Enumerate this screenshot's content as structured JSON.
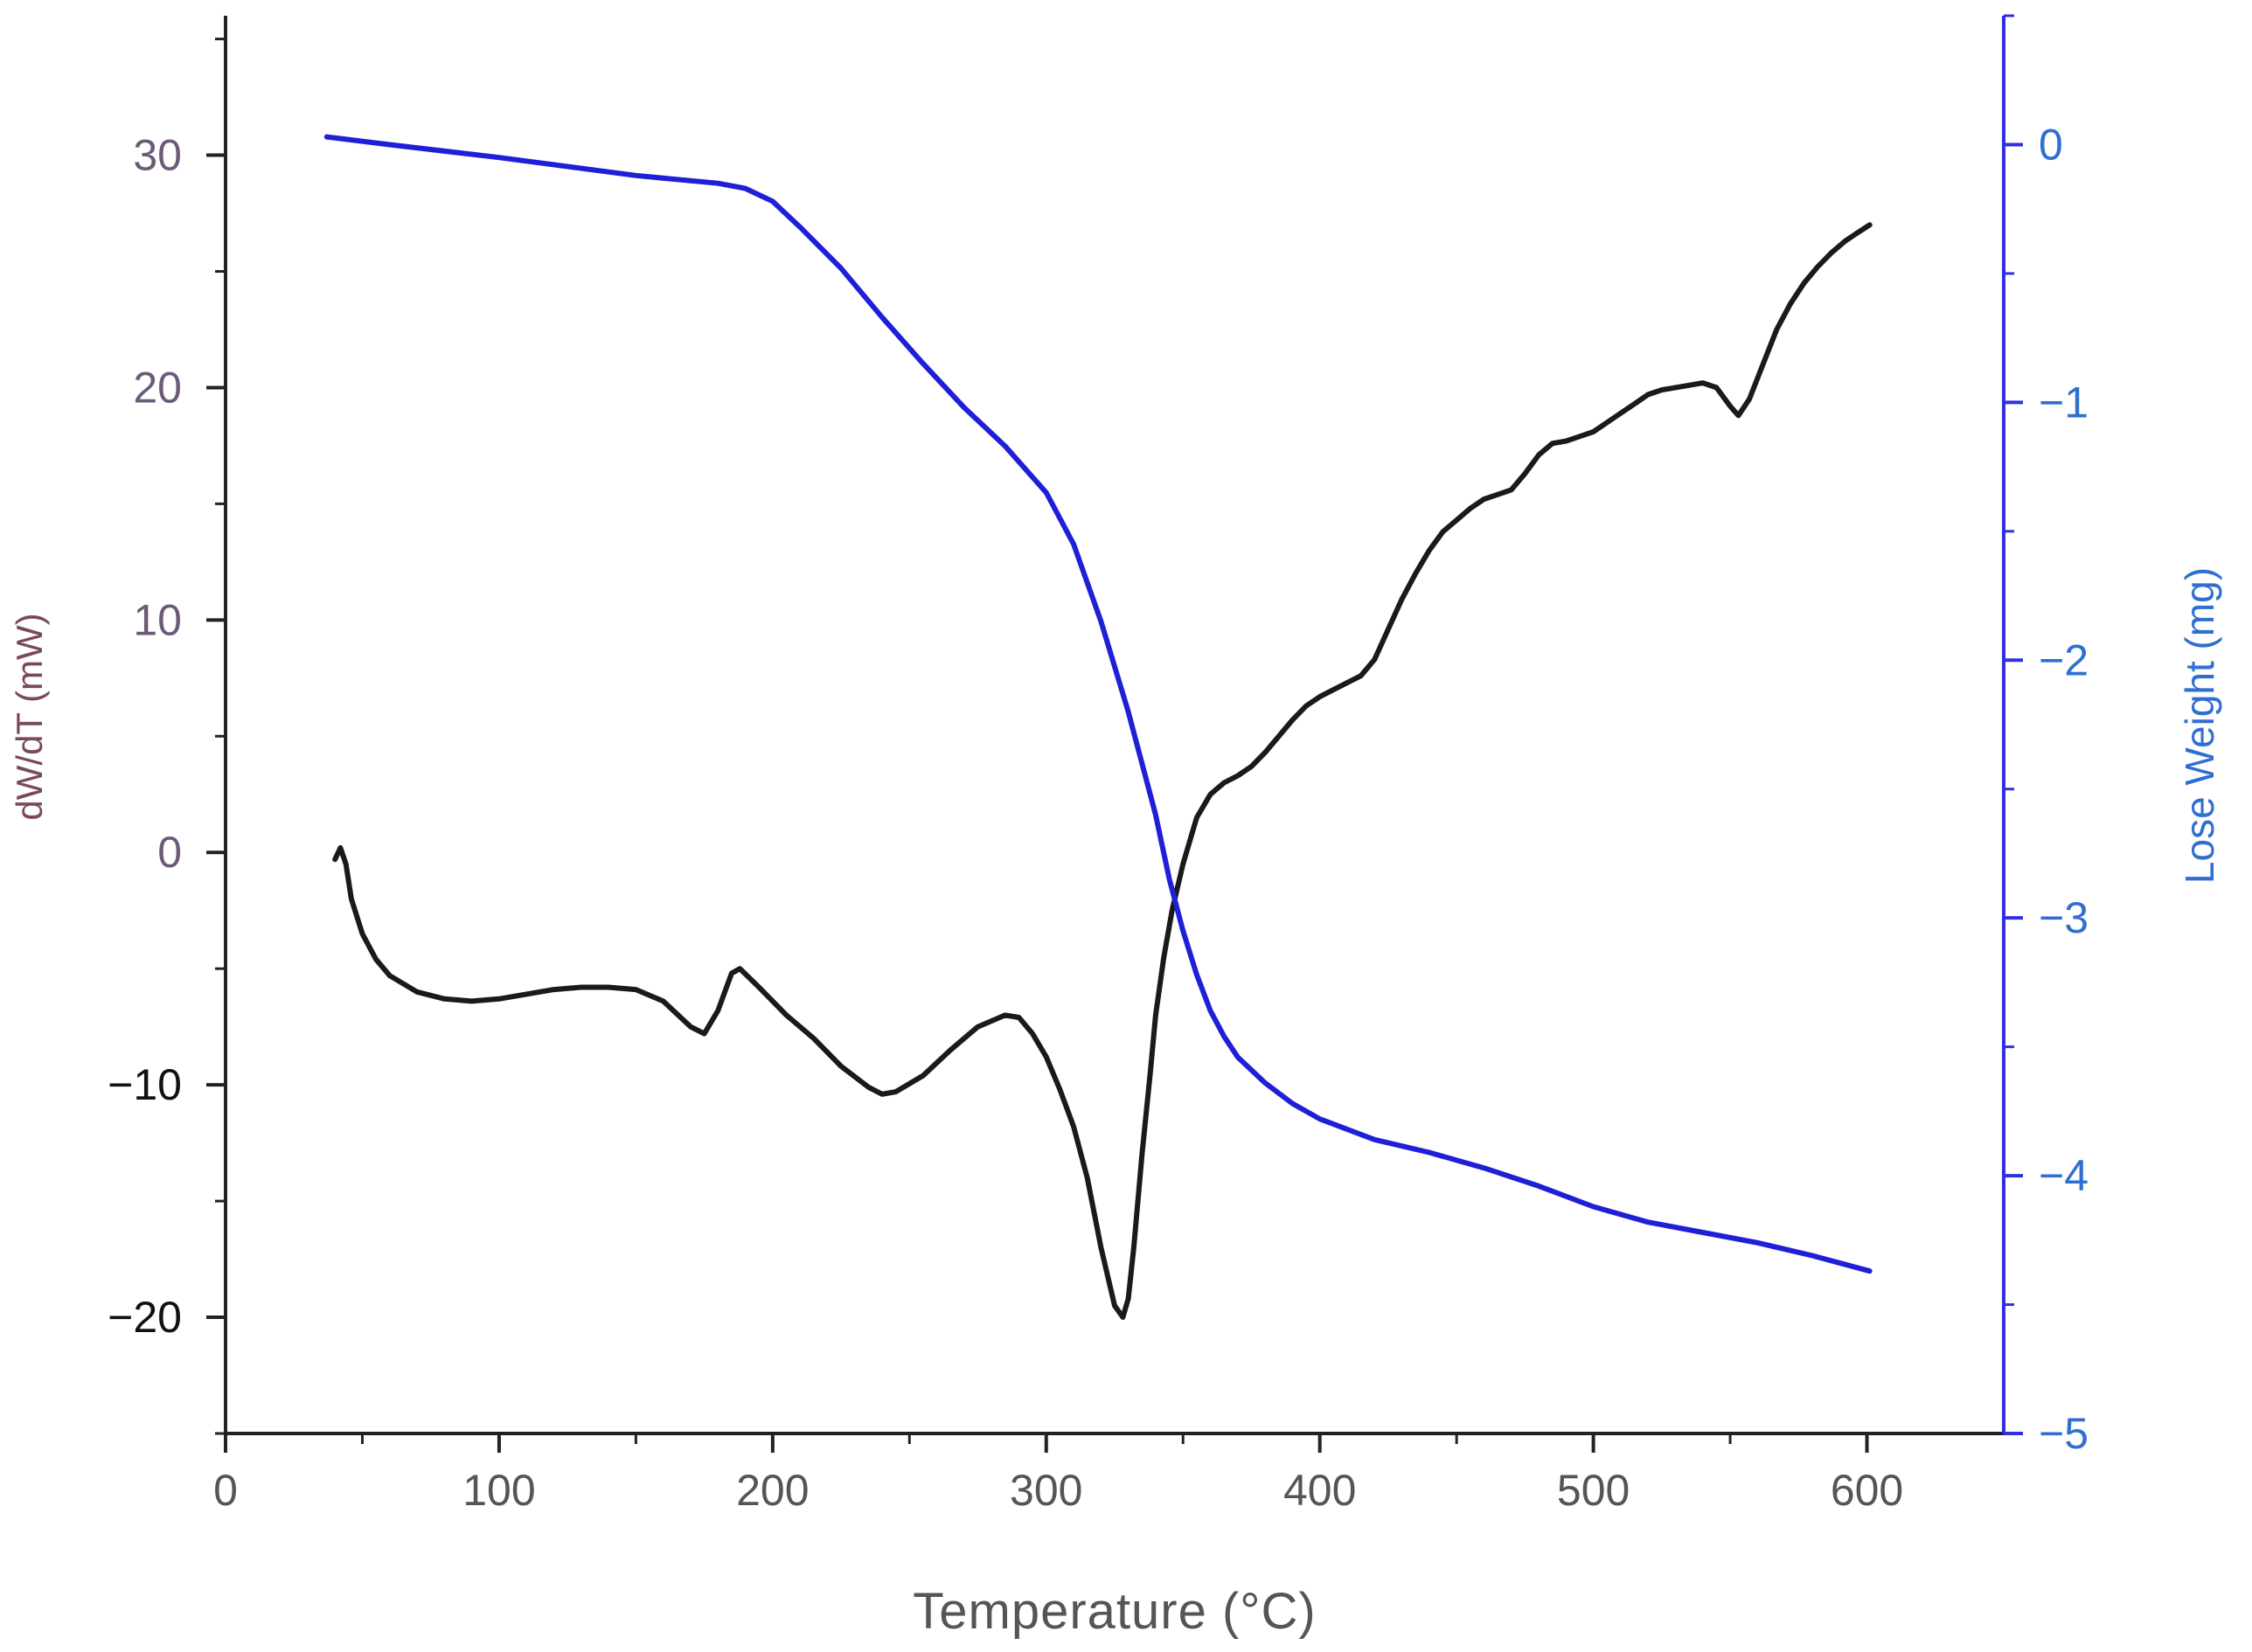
{
  "chart_data": {
    "type": "line",
    "title": "",
    "xlabel": "Temperature (°C)",
    "ylabel_left": "dW/dT (mW)",
    "ylabel_right": "Lose Weight (mg)",
    "xlim": [
      0,
      650
    ],
    "ylim_left": [
      -25,
      36
    ],
    "ylim_right": [
      -5,
      0.5
    ],
    "x_ticks": [
      {
        "value": 0,
        "label": "0"
      },
      {
        "value": 100,
        "label": "100"
      },
      {
        "value": 200,
        "label": "200"
      },
      {
        "value": 300,
        "label": "300"
      },
      {
        "value": 400,
        "label": "400"
      },
      {
        "value": 500,
        "label": "500"
      },
      {
        "value": 600,
        "label": "600"
      }
    ],
    "y_ticks_left": [
      {
        "value": 30,
        "label": "30"
      },
      {
        "value": 20,
        "label": "20"
      },
      {
        "value": 10,
        "label": "10"
      },
      {
        "value": 0,
        "label": "0"
      },
      {
        "value": -10,
        "label": "−10"
      },
      {
        "value": -20,
        "label": "−20"
      }
    ],
    "y_ticks_right": [
      {
        "value": 0,
        "label": "0"
      },
      {
        "value": -1,
        "label": "−1"
      },
      {
        "value": -2,
        "label": "−2"
      },
      {
        "value": -3,
        "label": "−3"
      },
      {
        "value": -4,
        "label": "−4"
      },
      {
        "value": -5,
        "label": "−5"
      }
    ],
    "grid": false,
    "series": [
      {
        "name": "dW/dT",
        "axis": "left",
        "color": "#1a1a1a",
        "x": [
          40,
          42,
          44,
          46,
          50,
          55,
          60,
          70,
          80,
          90,
          100,
          110,
          120,
          130,
          140,
          150,
          160,
          170,
          175,
          180,
          185,
          188,
          195,
          205,
          215,
          225,
          235,
          240,
          245,
          255,
          265,
          275,
          285,
          290,
          295,
          300,
          305,
          310,
          315,
          320,
          325,
          328,
          330,
          332,
          335,
          338,
          340,
          343,
          346,
          350,
          355,
          360,
          365,
          370,
          375,
          380,
          385,
          390,
          395,
          400,
          405,
          410,
          415,
          420,
          425,
          430,
          435,
          440,
          445,
          450,
          455,
          460,
          465,
          470,
          475,
          480,
          485,
          490,
          495,
          500,
          505,
          510,
          515,
          520,
          525,
          530,
          535,
          540,
          545,
          550,
          553,
          557,
          562,
          567,
          572,
          577,
          582,
          587,
          592,
          597,
          601
        ],
        "y": [
          -0.3,
          0.2,
          -0.5,
          -2.0,
          -3.5,
          -4.6,
          -5.3,
          -6.0,
          -6.3,
          -6.4,
          -6.3,
          -6.1,
          -5.9,
          -5.8,
          -5.8,
          -5.9,
          -6.4,
          -7.5,
          -7.8,
          -6.8,
          -5.2,
          -5.0,
          -5.8,
          -7.0,
          -8.0,
          -9.2,
          -10.1,
          -10.4,
          -10.3,
          -9.6,
          -8.5,
          -7.5,
          -7.0,
          -7.1,
          -7.8,
          -8.8,
          -10.2,
          -11.8,
          -14.0,
          -17.0,
          -19.5,
          -20.0,
          -19.2,
          -17.0,
          -13.0,
          -9.5,
          -7.0,
          -4.5,
          -2.5,
          -0.5,
          1.5,
          2.5,
          3.0,
          3.3,
          3.7,
          4.3,
          5.0,
          5.7,
          6.3,
          6.7,
          7.0,
          7.3,
          7.6,
          8.3,
          9.6,
          10.9,
          12.0,
          13.0,
          13.8,
          14.3,
          14.8,
          15.2,
          15.4,
          15.6,
          16.3,
          17.1,
          17.6,
          17.7,
          17.9,
          18.1,
          18.5,
          18.9,
          19.3,
          19.7,
          19.9,
          20.0,
          20.1,
          20.2,
          20.0,
          19.2,
          18.8,
          19.5,
          21.0,
          22.5,
          23.6,
          24.5,
          25.2,
          25.8,
          26.3,
          26.7,
          27.0
        ]
      },
      {
        "name": "Lose Weight",
        "axis": "right",
        "color": "#1f1fd8",
        "x": [
          37,
          60,
          100,
          150,
          180,
          190,
          200,
          210,
          225,
          240,
          255,
          270,
          285,
          300,
          310,
          320,
          330,
          340,
          345,
          350,
          355,
          360,
          365,
          370,
          380,
          390,
          400,
          420,
          440,
          460,
          480,
          500,
          520,
          540,
          560,
          580,
          601
        ],
        "y": [
          0.03,
          0.0,
          -0.05,
          -0.12,
          -0.15,
          -0.17,
          -0.22,
          -0.32,
          -0.48,
          -0.67,
          -0.85,
          -1.02,
          -1.17,
          -1.35,
          -1.55,
          -1.85,
          -2.2,
          -2.6,
          -2.85,
          -3.05,
          -3.22,
          -3.36,
          -3.46,
          -3.54,
          -3.64,
          -3.72,
          -3.78,
          -3.86,
          -3.91,
          -3.97,
          -4.04,
          -4.12,
          -4.18,
          -4.22,
          -4.26,
          -4.31,
          -4.37
        ]
      }
    ]
  }
}
